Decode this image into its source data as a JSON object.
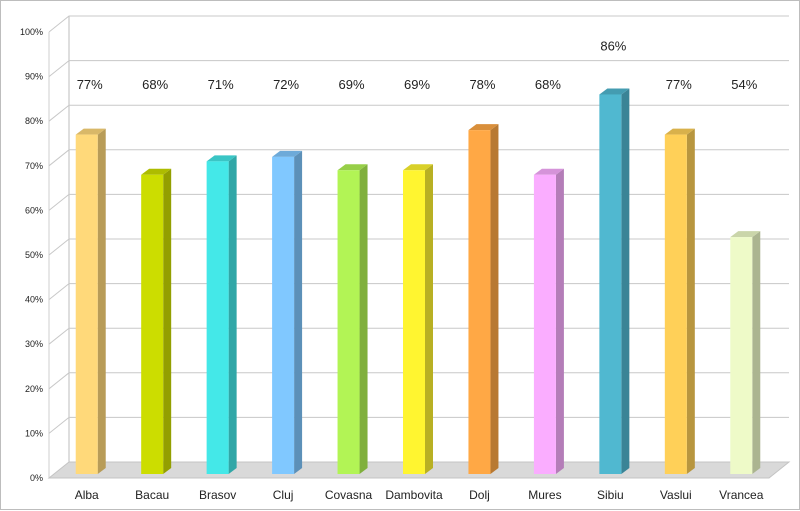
{
  "chart_data": {
    "type": "bar",
    "categories": [
      "Alba",
      "Bacau",
      "Brasov",
      "Cluj",
      "Covasna",
      "Dambovita",
      "Dolj",
      "Mures",
      "Sibiu",
      "Vaslui",
      "Vrancea"
    ],
    "values": [
      77,
      68,
      71,
      72,
      69,
      69,
      78,
      68,
      86,
      77,
      54
    ],
    "data_labels": [
      "77%",
      "68%",
      "71%",
      "72%",
      "69%",
      "69%",
      "78%",
      "68%",
      "86%",
      "77%",
      "54%"
    ],
    "colors": [
      "#FFD97A",
      "#CCDD00",
      "#44E8E8",
      "#80C8FF",
      "#B2F455",
      "#FFF530",
      "#FFA845",
      "#FAADFF",
      "#50B8D0",
      "#FFD058",
      "#EEFAC8"
    ],
    "yticks": [
      "0%",
      "10%",
      "20%",
      "30%",
      "40%",
      "50%",
      "60%",
      "70%",
      "80%",
      "90%",
      "100%"
    ],
    "ylim": [
      0,
      100
    ],
    "title": "",
    "xlabel": "",
    "ylabel": "",
    "grid": true,
    "legend": "none",
    "style": "3d-columns"
  }
}
